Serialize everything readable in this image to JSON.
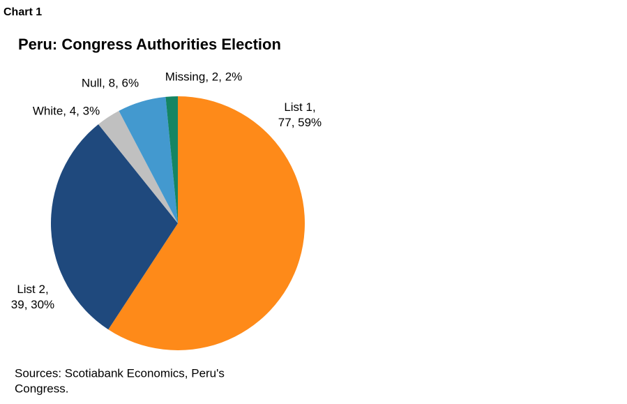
{
  "chart_data": {
    "type": "pie",
    "label": "Chart 1",
    "title": "Peru: Congress Authorities Election",
    "values": [
      77,
      39,
      4,
      8,
      2
    ],
    "value_labels": [
      "List 1, 77, 59%",
      "List 2, 39, 30%",
      "White, 4, 3%",
      "Null, 8, 6%",
      "Missing, 2, 2%"
    ],
    "colors": [
      "#fe8a19",
      "#1f497d",
      "#c0c0c0",
      "#4399cf",
      "#148563"
    ],
    "source": [
      "Sources: Scotiabank Economics, Peru's",
      "Congress."
    ]
  }
}
